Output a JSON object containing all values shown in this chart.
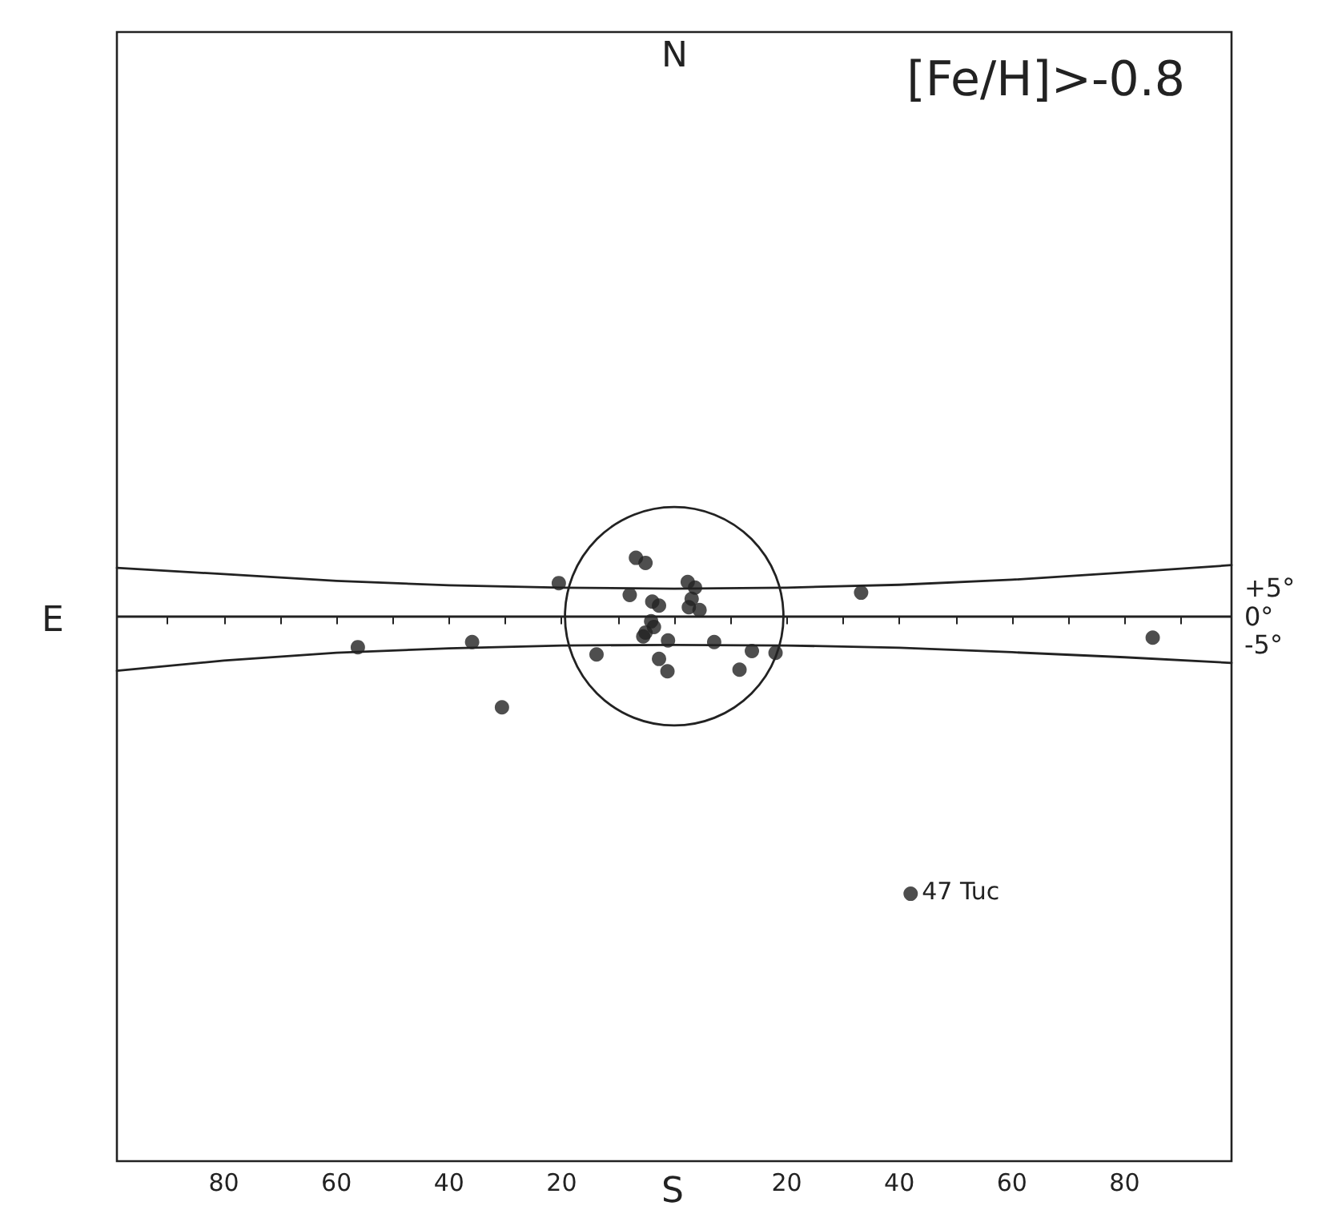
{
  "chart_data": {
    "type": "scatter",
    "title": "[Fe/H]>-0.8",
    "annotations": [
      "N",
      "S",
      "E",
      {
        "text": "47 Tuc",
        "x": -42,
        "y": -49.4
      }
    ],
    "xlim": [
      99,
      -99
    ],
    "ylim": [
      -97,
      104
    ],
    "xticks": [
      {
        "value": 90,
        "label": null
      },
      {
        "value": 80,
        "label": "80"
      },
      {
        "value": 70,
        "label": null
      },
      {
        "value": 60,
        "label": "60"
      },
      {
        "value": 50,
        "label": null
      },
      {
        "value": 40,
        "label": "40"
      },
      {
        "value": 30,
        "label": null
      },
      {
        "value": 20,
        "label": "20"
      },
      {
        "value": 10,
        "label": null
      },
      {
        "value": 0,
        "label": null
      },
      {
        "value": -10,
        "label": null
      },
      {
        "value": -20,
        "label": "20"
      },
      {
        "value": -30,
        "label": null
      },
      {
        "value": -40,
        "label": "40"
      },
      {
        "value": -50,
        "label": null
      },
      {
        "value": -60,
        "label": "60"
      },
      {
        "value": -70,
        "label": null
      },
      {
        "value": -80,
        "label": "80"
      },
      {
        "value": -90,
        "label": null
      }
    ],
    "yticks": [
      {
        "value": 5,
        "label": "+5°"
      },
      {
        "value": 0,
        "label": "0°"
      },
      {
        "value": -5,
        "label": "-5°"
      }
    ],
    "ref_lines": [
      {
        "axis": "y",
        "value": 0
      }
    ],
    "grid": false,
    "marker": "circle",
    "series": [
      {
        "color": "#222222",
        "x": [
          20.5,
          6.8,
          5.1,
          7.9,
          -2.4,
          -3.7,
          3.9,
          2.7,
          -2.6,
          -4.5,
          -3.1,
          4.1,
          3.6,
          5.5,
          5.1,
          1.1,
          -7.1,
          13.8,
          2.7,
          1.2,
          -13.8,
          -18,
          -11.6,
          56.2,
          35.9,
          30.6,
          -33.2,
          -85,
          -42
        ],
        "values": [
          5.9,
          10.4,
          9.5,
          3.8,
          6.1,
          5.1,
          2.6,
          1.9,
          1.6,
          1.1,
          3.1,
          -0.9,
          -1.9,
          -3.6,
          -2.9,
          -4.3,
          -4.6,
          -6.8,
          -7.6,
          -9.8,
          -6.2,
          -6.5,
          -9.5,
          -5.5,
          -4.6,
          -16.2,
          4.2,
          -3.8,
          -49.4
        ]
      },
      {
        "type": "line",
        "color": "#222222",
        "marker": "none",
        "x": [
          99,
          80,
          60,
          40,
          20,
          0,
          -20,
          -40,
          -60,
          -80,
          -99
        ],
        "values": [
          8.6,
          7.5,
          6.3,
          5.5,
          5.1,
          4.9,
          5.1,
          5.6,
          6.5,
          7.8,
          9.1
        ]
      },
      {
        "type": "line",
        "color": "#222222",
        "marker": "none",
        "x": [
          99,
          80,
          60,
          40,
          20,
          0,
          -20,
          -40,
          -60,
          -80,
          -99
        ],
        "values": [
          -9.7,
          -7.9,
          -6.5,
          -5.7,
          -5.2,
          -5.1,
          -5.2,
          -5.6,
          -6.4,
          -7.3,
          -8.3
        ]
      }
    ]
  }
}
